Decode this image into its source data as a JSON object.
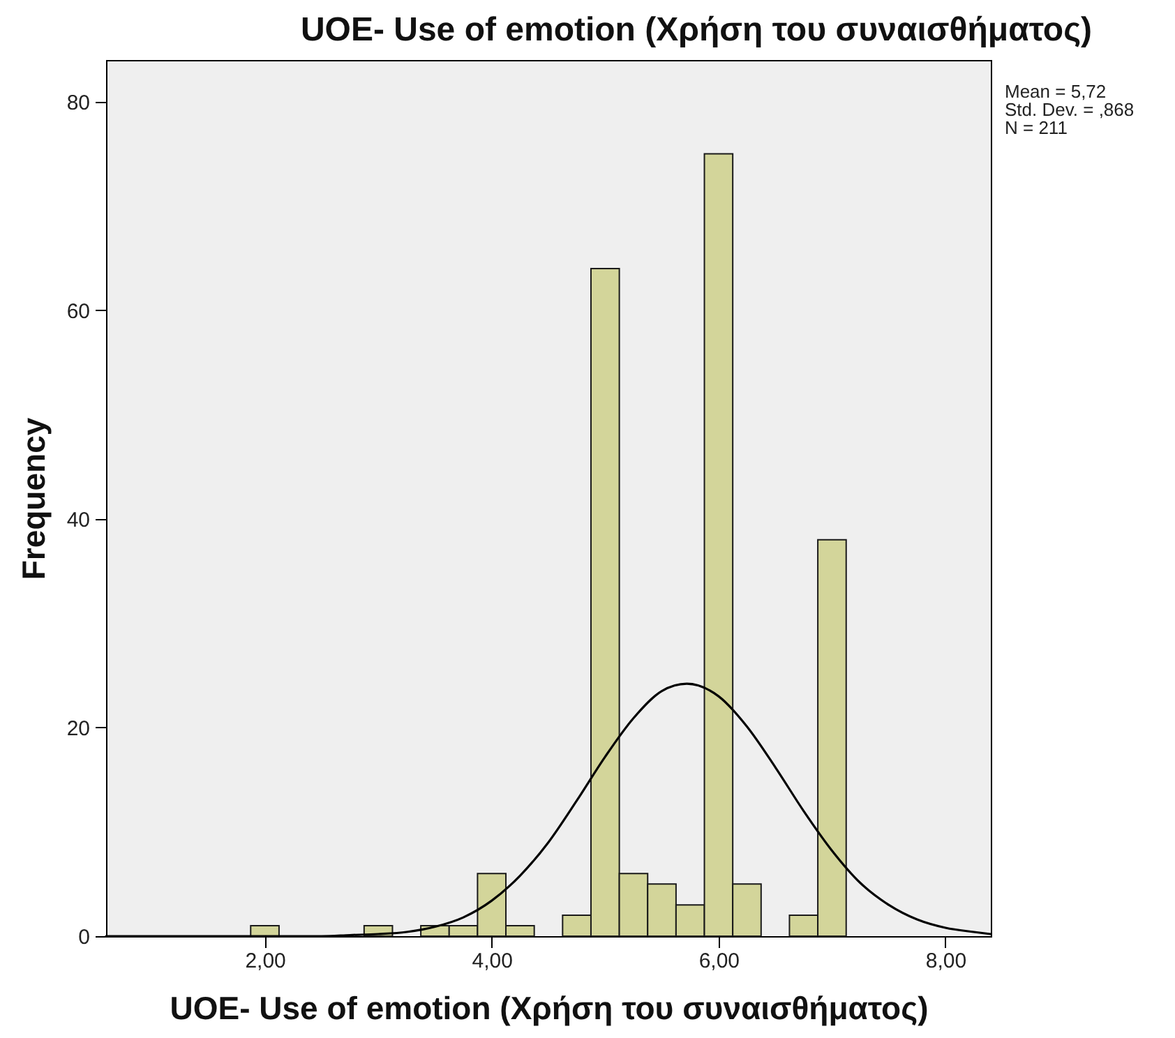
{
  "chart_data": {
    "type": "histogram",
    "title": "UOE- Use of emotion (Χρήση του συναισθήματος)",
    "xlabel": "UOE- Use of emotion (Χρήση του συναισθήματος)",
    "ylabel": "Frequency",
    "bins": [
      1.875,
      2.125,
      2.375,
      2.625,
      2.875,
      3.125,
      3.375,
      3.625,
      3.875,
      4.125,
      4.375,
      4.625,
      4.875,
      5.125,
      5.375,
      5.625,
      5.875,
      6.125,
      6.375,
      6.625,
      6.875,
      7.125
    ],
    "series": [
      {
        "color": "#d3d59a",
        "values": [
          1,
          0,
          0,
          0,
          1,
          0,
          1,
          1,
          6,
          1,
          0,
          2,
          64,
          6,
          5,
          3,
          75,
          5,
          0,
          2,
          38
        ]
      },
      {
        "type": "line",
        "color": "#000000",
        "x": [
          0.6,
          1.5,
          2.5,
          2.75,
          3,
          3.25,
          3.5,
          3.75,
          4,
          4.25,
          4.5,
          4.75,
          5,
          5.25,
          5.5,
          5.72,
          6,
          6.25,
          6.5,
          6.75,
          7,
          7.25,
          7.5,
          7.75,
          8,
          8.25,
          8.4
        ],
        "values": [
          0,
          0,
          0,
          0.1,
          0.2,
          0.4,
          0.9,
          1.8,
          3.4,
          5.8,
          9.0,
          13.0,
          17.2,
          20.9,
          23.5,
          24.2,
          23.0,
          20.1,
          16.2,
          12.0,
          8.2,
          5.1,
          3.0,
          1.6,
          0.8,
          0.4,
          0.2
        ]
      }
    ],
    "xlim": [
      0.6,
      8.4
    ],
    "ylim": [
      0,
      84
    ],
    "xticks": [
      {
        "value": 2,
        "label": "2,00"
      },
      {
        "value": 4,
        "label": "4,00"
      },
      {
        "value": 6,
        "label": "6,00"
      },
      {
        "value": 8,
        "label": "8,00"
      }
    ],
    "yticks": [
      0,
      20,
      40,
      60,
      80
    ],
    "annotations": [
      "Mean = 5,72",
      "Std. Dev. = ,868",
      "N = 211"
    ]
  }
}
